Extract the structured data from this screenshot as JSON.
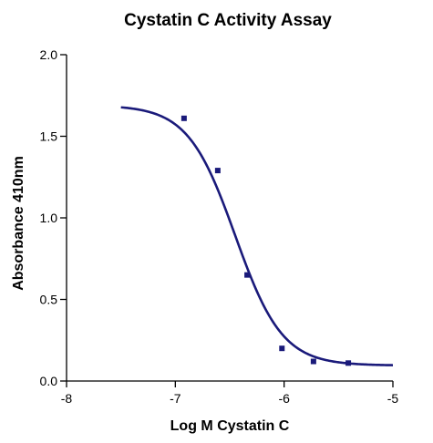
{
  "chart_data": {
    "type": "line",
    "title": "Cystatin C Activity Assay",
    "xlabel": "Log M Cystatin C",
    "ylabel": "Absorbance 410nm",
    "xlim": [
      -8,
      -5
    ],
    "ylim": [
      0.0,
      2.0
    ],
    "x_ticks": [
      "-8",
      "-7",
      "-6",
      "-5"
    ],
    "y_ticks": [
      "0.0",
      "0.5",
      "1.0",
      "1.5",
      "2.0"
    ],
    "grid": false,
    "legend": "none",
    "series_color": "#1a1a7a",
    "fit": {
      "model": "sigmoidal dose-response",
      "top": 1.69,
      "bottom": 0.095,
      "log_ec50": -6.45,
      "hill": -2.0,
      "x_range": [
        -7.5,
        -5.0
      ]
    },
    "points": [
      {
        "x": -6.92,
        "y": 1.61
      },
      {
        "x": -6.61,
        "y": 1.29
      },
      {
        "x": -6.34,
        "y": 0.65
      },
      {
        "x": -6.02,
        "y": 0.2
      },
      {
        "x": -5.73,
        "y": 0.12
      },
      {
        "x": -5.41,
        "y": 0.11
      }
    ]
  }
}
